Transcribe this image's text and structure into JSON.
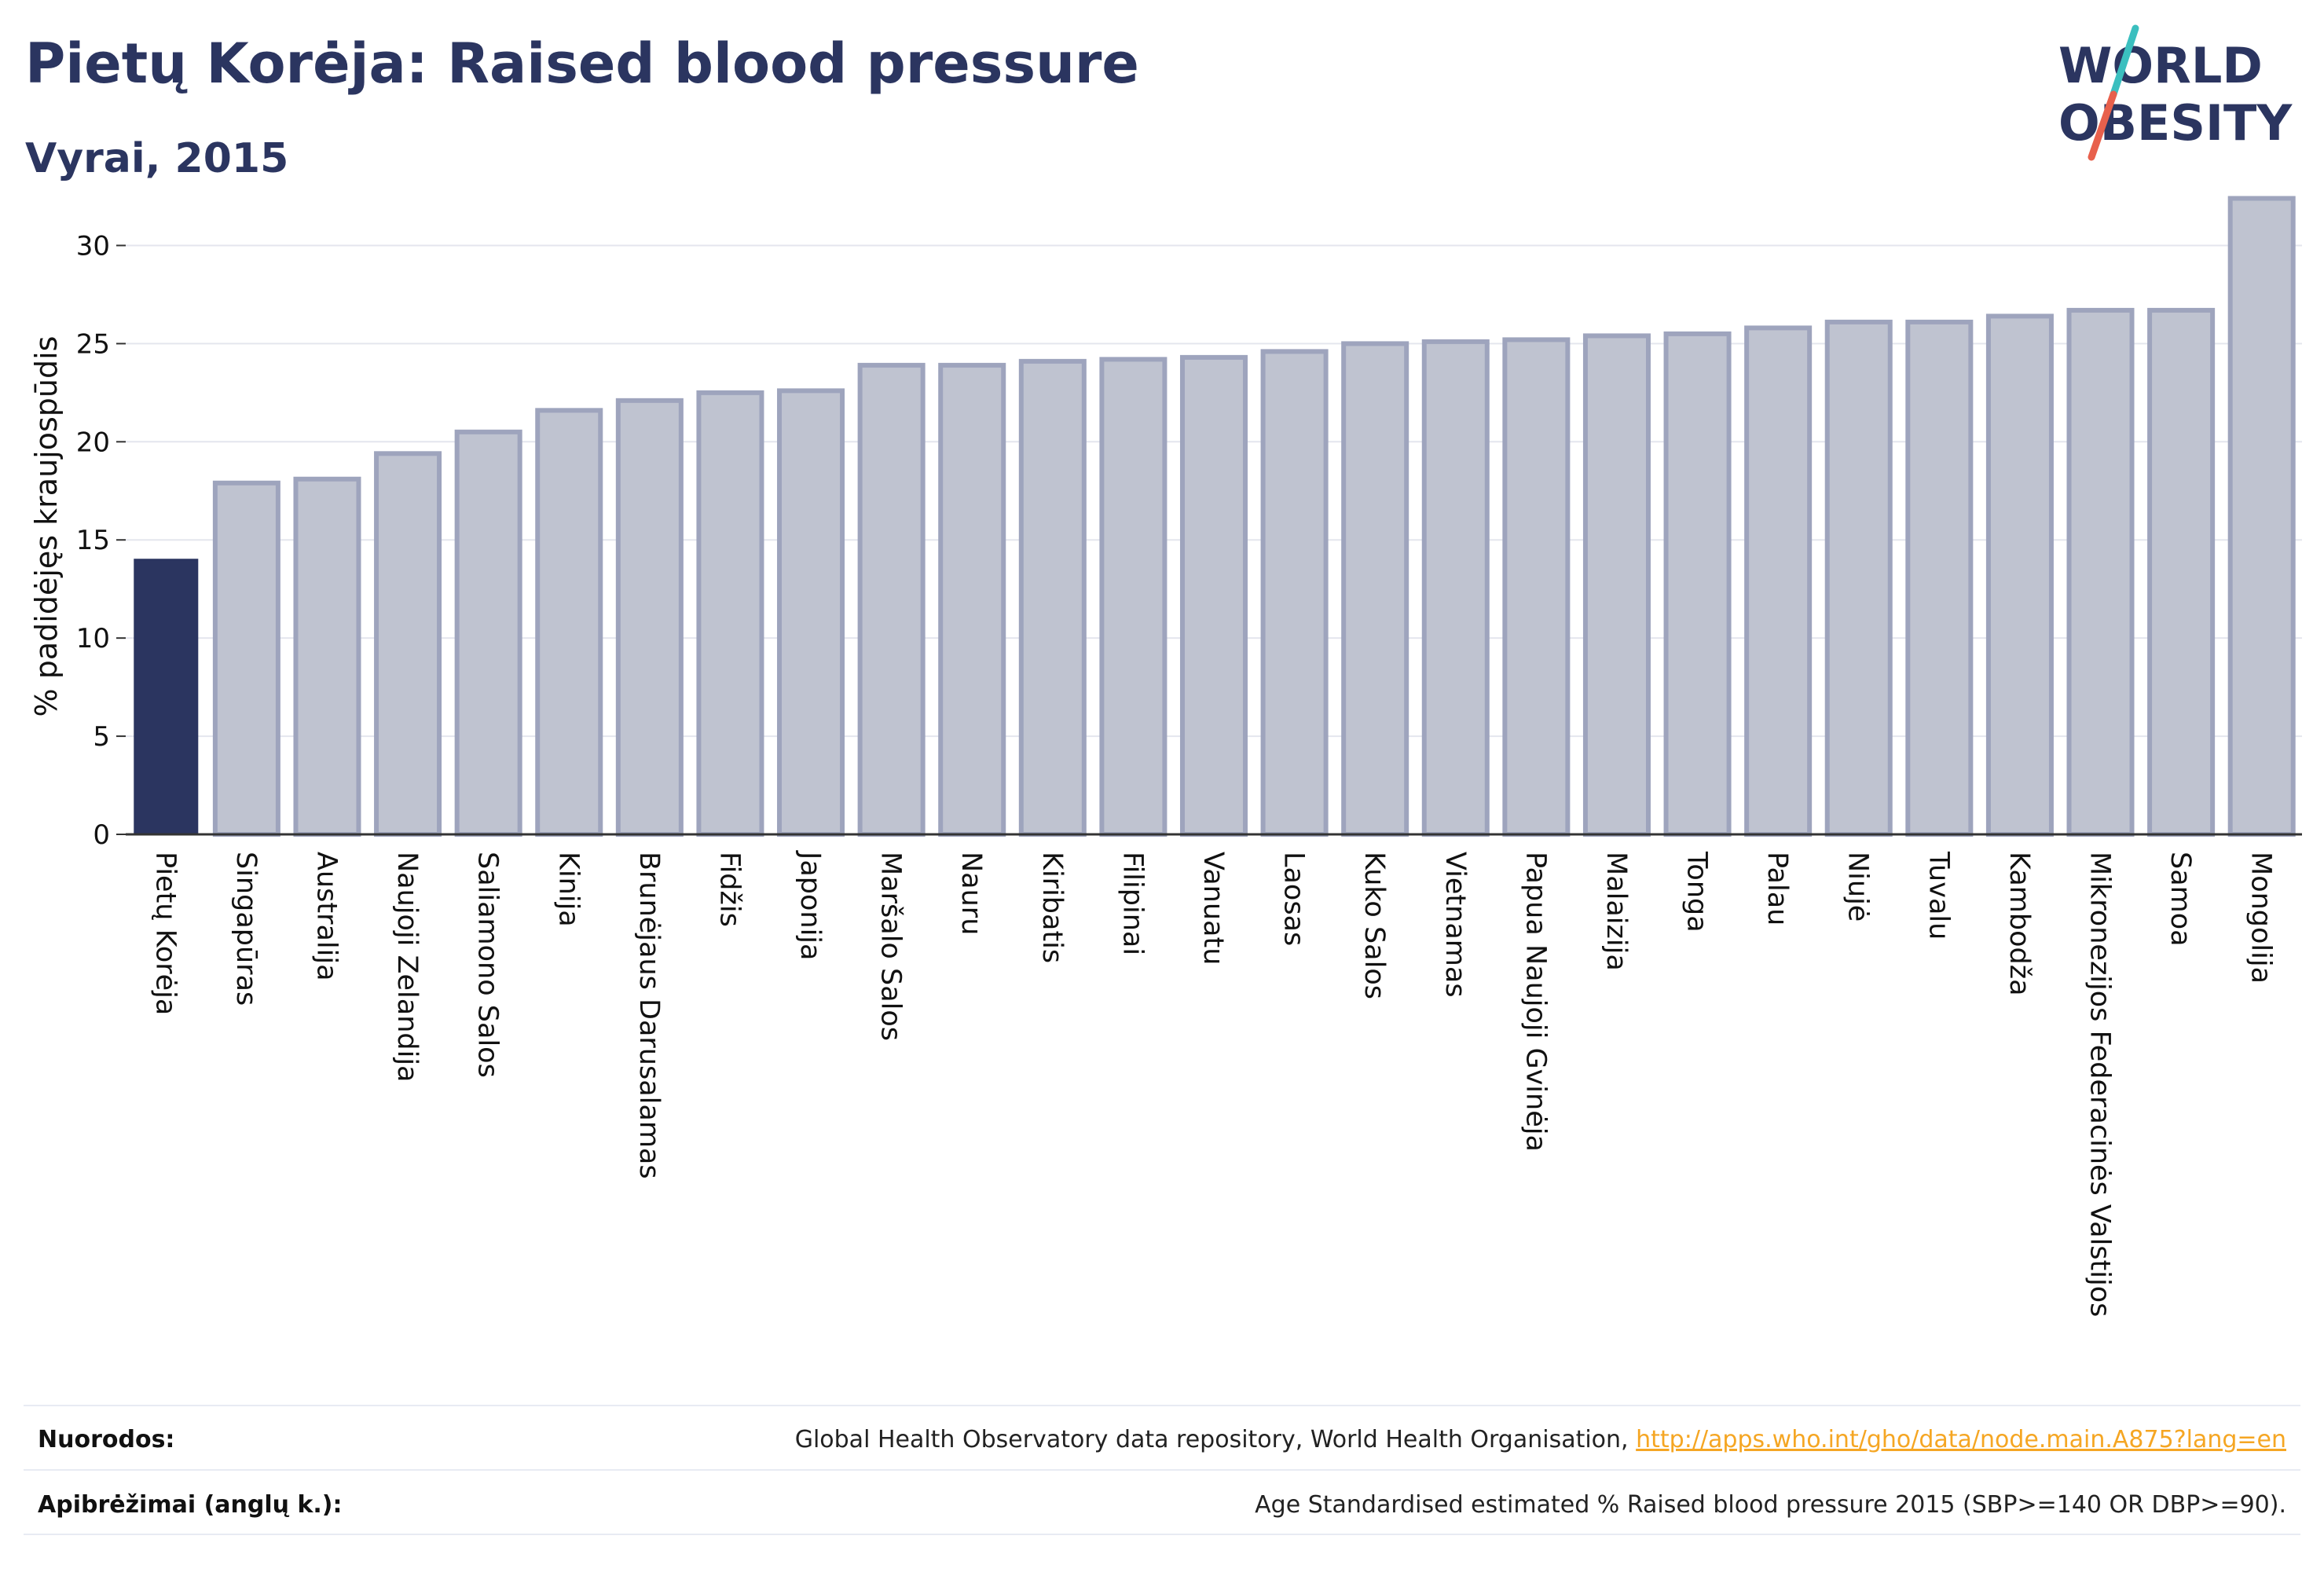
{
  "header": {
    "title": "Pietų Korėja: Raised blood pressure",
    "subtitle": "Vyrai, 2015"
  },
  "logo": {
    "line1": "WORLD",
    "line2": "OBESITY"
  },
  "colors": {
    "highlight_bar": "#2b3560",
    "bar_fill": "#bfc3d0",
    "bar_stroke": "#9ea4bd",
    "grid": "#e4e6ee",
    "logo_text": "#2b3560",
    "logo_accent_teal": "#3bbfbf",
    "logo_accent_red": "#e8604c"
  },
  "chart_data": {
    "type": "bar",
    "ylabel": "% padidėjęs kraujospūdis",
    "ylim": [
      0,
      32.5
    ],
    "yticks": [
      0,
      5,
      10,
      15,
      20,
      25,
      30
    ],
    "grid": true,
    "highlight": "Pietų Korėja",
    "categories": [
      "Pietų Korėja",
      "Singapūras",
      "Australija",
      "Naujoji Zelandija",
      "Saliamono Salos",
      "Kinija",
      "Brunėjaus Darusalamas",
      "Fidžis",
      "Japonija",
      "Maršalo Salos",
      "Nauru",
      "Kiribatis",
      "Filipinai",
      "Vanuatu",
      "Laosas",
      "Kuko Salos",
      "Vietnamas",
      "Papua Naujoji Gvinėja",
      "Malaizija",
      "Tonga",
      "Palau",
      "Niujė",
      "Tuvalu",
      "Kambodža",
      "Mikronezijos Federacinės Valstijos",
      "Samoa",
      "Mongolija"
    ],
    "values": [
      14.0,
      17.9,
      18.1,
      19.4,
      20.5,
      21.6,
      22.1,
      22.5,
      22.6,
      23.9,
      23.9,
      24.1,
      24.2,
      24.3,
      24.6,
      25.0,
      25.1,
      25.2,
      25.4,
      25.5,
      25.8,
      26.1,
      26.1,
      26.4,
      26.7,
      26.7,
      32.4
    ]
  },
  "footer": {
    "sources_label": "Nuorodos:",
    "sources_text": "Global Health Observatory data repository, World Health Organisation,",
    "sources_link": "http://apps.who.int/gho/data/node.main.A875?lang=en",
    "definitions_label": "Apibrėžimai (anglų k.):",
    "definitions_text": "Age Standardised estimated % Raised blood pressure 2015 (SBP>=140 OR DBP>=90)."
  }
}
